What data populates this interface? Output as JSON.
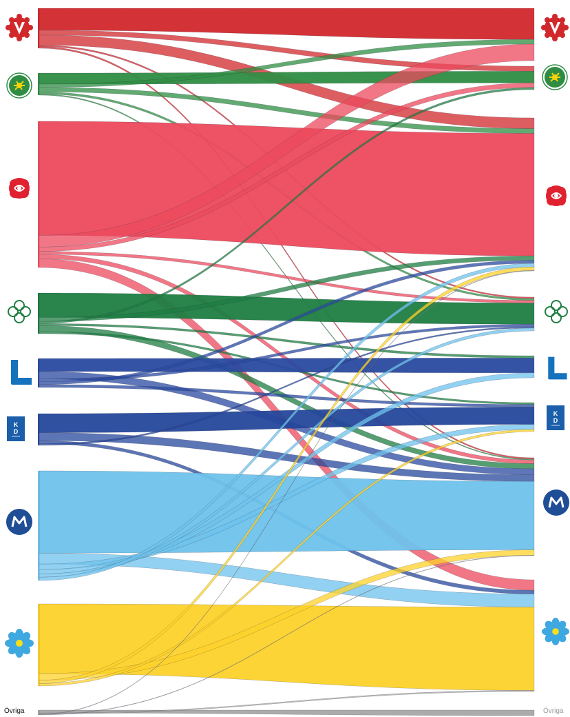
{
  "parties": [
    {
      "id": "V",
      "logo": "v-party-logo",
      "color": "#d1282c"
    },
    {
      "id": "MP",
      "logo": "mp-party-logo",
      "color": "#2f8d43"
    },
    {
      "id": "S",
      "logo": "s-party-logo",
      "color": "#ec4a5d"
    },
    {
      "id": "C",
      "logo": "c-party-logo",
      "color": "#1e7e41"
    },
    {
      "id": "L",
      "logo": "l-party-logo",
      "color": "#2a4aa0"
    },
    {
      "id": "KD",
      "logo": "kd-party-logo",
      "color": "#25479b",
      "logo_text": "K D"
    },
    {
      "id": "M",
      "logo": "m-party-logo",
      "color": "#6ec2ec"
    },
    {
      "id": "SD",
      "logo": "sd-party-logo",
      "color": "#fdd22a"
    },
    {
      "id": "OV",
      "logo": "",
      "color": "#a7a7a7",
      "label": "Övriga"
    }
  ],
  "left_labels": {
    "ovriga": "Övriga"
  },
  "right_labels": {
    "ovriga": "Övriga"
  }
}
